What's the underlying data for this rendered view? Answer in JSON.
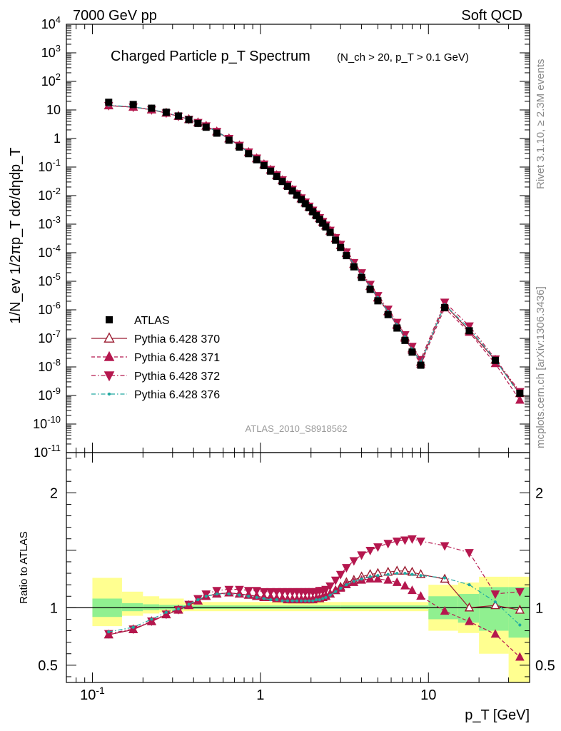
{
  "header": {
    "left": "7000 GeV pp",
    "right": "Soft QCD"
  },
  "side_labels": {
    "rivet": "Rivet 3.1.10, ≥ 2.3M events",
    "mcplots": "mcplots.cern.ch [arXiv:1306.3436]"
  },
  "chart_data": [
    {
      "type": "scatter",
      "title": "Charged Particle p_T Spectrum",
      "subtitle": "(N_ch > 20, p_T > 0.1 GeV)",
      "analysis_label": "ATLAS_2010_S8918562",
      "ylabel": "1/N_ev 1/2πp_T dσ/dηdp_T",
      "xlabel": "p_T [GeV]",
      "xscale": "log",
      "yscale": "log",
      "xlim": [
        0.07,
        40
      ],
      "ylim": [
        1e-11,
        10000.0
      ],
      "y_tick_labels": [
        "10^-11",
        "10^-10",
        "10^-9",
        "10^-8",
        "10^-7",
        "10^-6",
        "10^-5",
        "10^-4",
        "10^-3",
        "10^-2",
        "10^-1",
        "1",
        "10",
        "10^2",
        "10^3",
        "10^4"
      ],
      "legend_position": "bottom-left",
      "x": [
        0.125,
        0.175,
        0.225,
        0.275,
        0.325,
        0.375,
        0.425,
        0.475,
        0.55,
        0.65,
        0.75,
        0.85,
        0.95,
        1.05,
        1.15,
        1.25,
        1.35,
        1.45,
        1.55,
        1.65,
        1.75,
        1.85,
        1.95,
        2.05,
        2.15,
        2.25,
        2.35,
        2.45,
        2.6,
        2.8,
        3.0,
        3.25,
        3.6,
        4.0,
        4.5,
        5.0,
        5.75,
        6.5,
        7.25,
        8.0,
        9.0,
        12.5,
        17.5,
        25,
        35
      ],
      "series": [
        {
          "name": "ATLAS",
          "marker": "square",
          "color": "#000000",
          "values": [
            18.5,
            15.5,
            11.5,
            8.3,
            6.15,
            4.57,
            3.38,
            2.48,
            1.54,
            0.87,
            0.5,
            0.294,
            0.18,
            0.112,
            0.072,
            0.047,
            0.0312,
            0.0212,
            0.0146,
            0.0103,
            0.0073,
            0.0052,
            0.00375,
            0.00272,
            0.00198,
            0.00147,
            0.00108,
            0.0008,
            0.000513,
            0.000273,
            0.000152,
            7.9e-05,
            3.2e-05,
            1.36e-05,
            5.2e-06,
            2.07e-06,
            6.8e-07,
            2.3e-07,
            8.5e-08,
            3.3e-08,
            1.15e-08,
            1.2e-06,
            1.85e-07,
            1.7e-08,
            1.2e-09
          ]
        },
        {
          "name": "Pythia 6.428 370",
          "marker": "open-triangle-up",
          "line": "solid",
          "color": "#9b1b30",
          "ratio": [
            0.765,
            0.81,
            0.88,
            0.94,
            0.98,
            1.02,
            1.06,
            1.1,
            1.12,
            1.13,
            1.12,
            1.11,
            1.1,
            1.09,
            1.09,
            1.08,
            1.08,
            1.07,
            1.07,
            1.07,
            1.07,
            1.07,
            1.07,
            1.07,
            1.08,
            1.08,
            1.09,
            1.1,
            1.12,
            1.15,
            1.18,
            1.22,
            1.24,
            1.27,
            1.29,
            1.3,
            1.31,
            1.32,
            1.32,
            1.31,
            1.29,
            1.25,
            1.0,
            1.02,
            0.98
          ]
        },
        {
          "name": "Pythia 6.428 371",
          "marker": "triangle-up",
          "line": "dashed",
          "color": "#b5174e",
          "ratio": [
            0.765,
            0.81,
            0.88,
            0.94,
            0.98,
            1.02,
            1.06,
            1.1,
            1.12,
            1.13,
            1.12,
            1.11,
            1.1,
            1.09,
            1.09,
            1.08,
            1.08,
            1.07,
            1.07,
            1.07,
            1.07,
            1.07,
            1.07,
            1.07,
            1.08,
            1.08,
            1.09,
            1.1,
            1.12,
            1.15,
            1.17,
            1.2,
            1.22,
            1.24,
            1.25,
            1.25,
            1.24,
            1.22,
            1.19,
            1.15,
            1.1,
            0.97,
            0.88,
            0.77,
            0.57
          ]
        },
        {
          "name": "Pythia 6.428 372",
          "marker": "triangle-down",
          "line": "dash-dot",
          "color": "#b5174e",
          "ratio": [
            0.775,
            0.815,
            0.885,
            0.945,
            0.985,
            1.03,
            1.08,
            1.12,
            1.15,
            1.16,
            1.16,
            1.15,
            1.15,
            1.14,
            1.14,
            1.14,
            1.14,
            1.14,
            1.14,
            1.14,
            1.14,
            1.14,
            1.14,
            1.14,
            1.14,
            1.15,
            1.15,
            1.16,
            1.19,
            1.24,
            1.29,
            1.35,
            1.41,
            1.46,
            1.5,
            1.53,
            1.56,
            1.58,
            1.59,
            1.6,
            1.58,
            1.54,
            1.48,
            1.12,
            1.14
          ]
        },
        {
          "name": "Pythia 6.428 376",
          "marker": "dot",
          "line": "dash-dot",
          "color": "#20a8a0",
          "ratio": [
            0.79,
            0.83,
            0.9,
            0.96,
            0.99,
            1.03,
            1.07,
            1.1,
            1.12,
            1.12,
            1.11,
            1.1,
            1.09,
            1.08,
            1.07,
            1.07,
            1.06,
            1.06,
            1.06,
            1.06,
            1.06,
            1.06,
            1.06,
            1.06,
            1.07,
            1.07,
            1.08,
            1.09,
            1.11,
            1.14,
            1.17,
            1.2,
            1.23,
            1.25,
            1.27,
            1.28,
            1.29,
            1.3,
            1.3,
            1.29,
            1.28,
            1.26,
            1.2,
            1.05,
            0.85
          ]
        }
      ]
    },
    {
      "type": "scatter",
      "ylabel": "Ratio to ATLAS",
      "xlabel": "p_T [GeV]",
      "xscale": "log",
      "xlim": [
        0.07,
        40
      ],
      "ylim": [
        0.35,
        2.35
      ],
      "y_ticks": [
        0.5,
        1,
        2
      ],
      "y_tick_labels": [
        "0.5",
        "1",
        "2"
      ],
      "x_tick_labels": [
        "10^-1",
        "1",
        "10"
      ],
      "reference_line": 1,
      "uncertainty_bands": [
        {
          "x_range": [
            0.1,
            0.15
          ],
          "inner": [
            0.92,
            1.08
          ],
          "outer": [
            0.84,
            1.26
          ]
        },
        {
          "x_range": [
            0.15,
            0.2
          ],
          "inner": [
            0.97,
            1.04
          ],
          "outer": [
            0.93,
            1.14
          ]
        },
        {
          "x_range": [
            0.2,
            0.25
          ],
          "inner": [
            0.98,
            1.03
          ],
          "outer": [
            0.95,
            1.1
          ]
        },
        {
          "x_range": [
            0.25,
            0.35
          ],
          "inner": [
            0.985,
            1.025
          ],
          "outer": [
            0.96,
            1.08
          ]
        },
        {
          "x_range": [
            0.35,
            3.0
          ],
          "inner": [
            0.99,
            1.02
          ],
          "outer": [
            0.97,
            1.05
          ]
        },
        {
          "x_range": [
            3.0,
            10.0
          ],
          "inner": [
            0.99,
            1.02
          ],
          "outer": [
            0.97,
            1.05
          ]
        },
        {
          "x_range": [
            10.0,
            15.0
          ],
          "inner": [
            0.9,
            1.1
          ],
          "outer": [
            0.8,
            1.2
          ]
        },
        {
          "x_range": [
            15.0,
            20.0
          ],
          "inner": [
            0.87,
            1.12
          ],
          "outer": [
            0.78,
            1.22
          ]
        },
        {
          "x_range": [
            20.0,
            30.0
          ],
          "inner": [
            0.8,
            1.18
          ],
          "outer": [
            0.6,
            1.27
          ]
        },
        {
          "x_range": [
            30.0,
            40.0
          ],
          "inner": [
            0.74,
            1.18
          ],
          "outer": [
            0.35,
            1.27
          ]
        }
      ]
    }
  ]
}
